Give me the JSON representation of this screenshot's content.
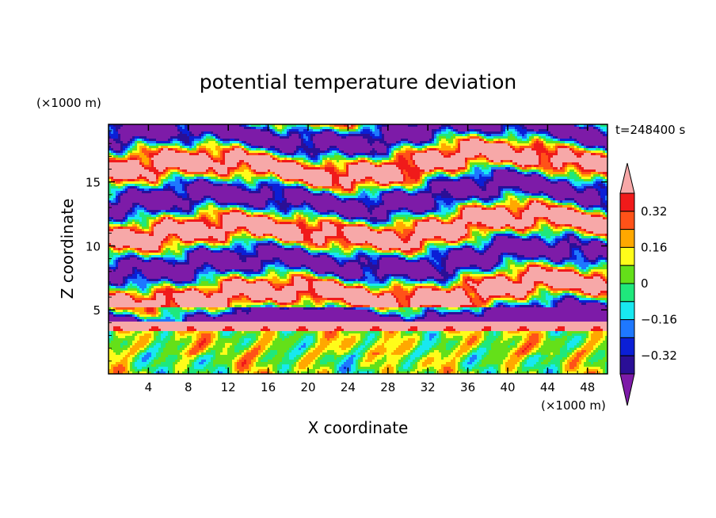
{
  "chart_data": {
    "type": "heatmap",
    "title": "potential temperature deviation",
    "xlabel": "X coordinate",
    "ylabel": "Z coordinate",
    "x_unit": "(×1000 m)",
    "y_unit": "(×1000 m)",
    "time_label": "t=248400 s",
    "xlim": [
      0,
      50
    ],
    "ylim": [
      0,
      19.5
    ],
    "x_ticks": [
      4,
      8,
      12,
      16,
      20,
      24,
      28,
      32,
      36,
      40,
      44,
      48
    ],
    "y_ticks": [
      5,
      10,
      15
    ],
    "grid": false,
    "colorbar": {
      "levels": [
        -0.48,
        -0.4,
        -0.32,
        -0.24,
        -0.16,
        -0.08,
        0,
        0.08,
        0.16,
        0.24,
        0.32,
        0.4
      ],
      "tick_values": [
        0.32,
        0.16,
        0,
        -0.16,
        -0.32
      ],
      "tick_labels": [
        "0.32",
        "0.16",
        "0",
        "−0.16",
        "−0.32"
      ],
      "colors": [
        "#7d1ba8",
        "#2a0f96",
        "#0b1fd6",
        "#1e78ff",
        "#18e8f0",
        "#1fe87c",
        "#64e019",
        "#fffc1a",
        "#ffa800",
        "#ff5218",
        "#f01a1a",
        "#f7a8a8"
      ],
      "extend": "both"
    },
    "field_description_layers": [
      {
        "z_range": [
          0,
          3.4
        ],
        "dominant": "green-yellow-cyan-blue mix"
      },
      {
        "z_range": [
          3.4,
          5
        ],
        "dominant": "pink with purple bands"
      },
      {
        "z_range": [
          5,
          19.5
        ],
        "dominant": "alternating purple and pink horizontal streaks"
      }
    ]
  }
}
